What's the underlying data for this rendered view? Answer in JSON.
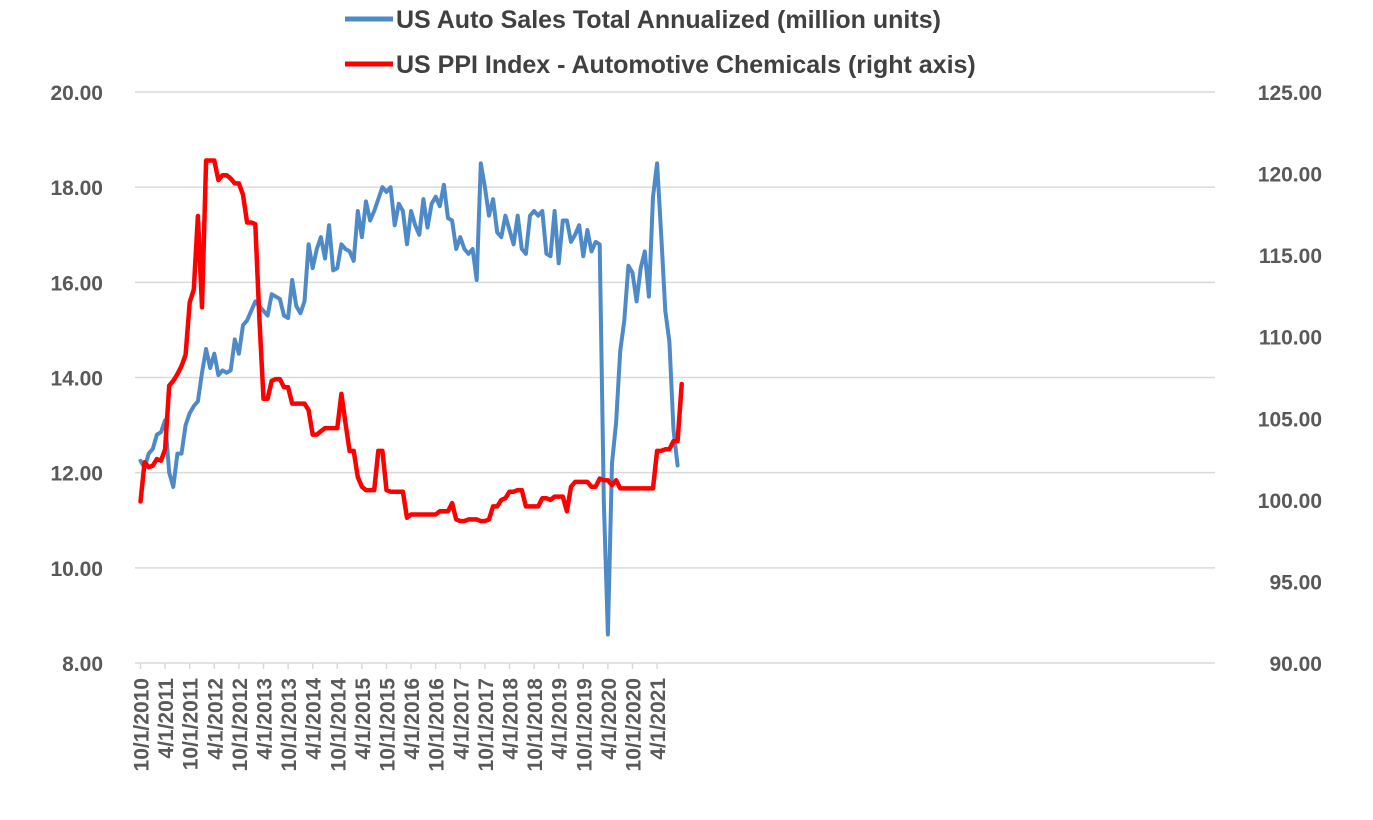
{
  "chart_data": {
    "type": "line",
    "title": "",
    "xlabel": "",
    "ylabel": "",
    "legend_position": "top-center",
    "grid": true,
    "x_tick_labels": [
      "10/1/2010",
      "4/1/2011",
      "10/1/2011",
      "4/1/2012",
      "10/1/2012",
      "4/1/2013",
      "10/1/2013",
      "4/1/2014",
      "10/1/2014",
      "4/1/2015",
      "10/1/2015",
      "4/1/2016",
      "10/1/2016",
      "4/1/2017",
      "10/1/2017",
      "4/1/2018",
      "10/1/2018",
      "4/1/2019",
      "10/1/2019",
      "4/1/2020",
      "10/1/2020",
      "4/1/2021"
    ],
    "x_start": "10/1/2010",
    "x_interval": "monthly",
    "y_left": {
      "range": [
        8,
        20
      ],
      "ticks": [
        "8.00",
        "10.00",
        "12.00",
        "14.00",
        "16.00",
        "18.00",
        "20.00"
      ]
    },
    "y_right": {
      "range": [
        90,
        125
      ],
      "ticks": [
        "90.00",
        "95.00",
        "100.00",
        "105.00",
        "110.00",
        "115.00",
        "120.00",
        "125.00"
      ]
    },
    "series": [
      {
        "name": "US Auto Sales Total Annualized (million units)",
        "axis": "left",
        "color": "#4e8ac8",
        "values": [
          12.25,
          12.1,
          12.4,
          12.5,
          12.8,
          12.85,
          13.1,
          12.0,
          11.7,
          12.4,
          12.4,
          13.0,
          13.25,
          13.4,
          13.5,
          14.1,
          14.6,
          14.2,
          14.5,
          14.05,
          14.15,
          14.1,
          14.15,
          14.8,
          14.5,
          15.1,
          15.2,
          15.4,
          15.6,
          15.5,
          15.4,
          15.3,
          15.75,
          15.7,
          15.65,
          15.3,
          15.25,
          16.05,
          15.5,
          15.35,
          15.6,
          16.8,
          16.3,
          16.7,
          16.95,
          16.5,
          17.2,
          16.25,
          16.3,
          16.8,
          16.7,
          16.65,
          16.45,
          17.5,
          16.95,
          17.7,
          17.3,
          17.5,
          17.75,
          18.0,
          17.9,
          18.0,
          17.2,
          17.65,
          17.5,
          16.8,
          17.5,
          17.2,
          17.0,
          17.75,
          17.15,
          17.65,
          17.8,
          17.6,
          18.05,
          17.35,
          17.3,
          16.7,
          16.95,
          16.7,
          16.6,
          16.7,
          16.05,
          18.5,
          18.0,
          17.4,
          17.75,
          17.05,
          16.95,
          17.4,
          17.1,
          16.8,
          17.4,
          16.7,
          16.6,
          17.4,
          17.5,
          17.4,
          17.5,
          16.6,
          16.55,
          17.5,
          16.4,
          17.3,
          17.3,
          16.85,
          17.0,
          17.2,
          16.55,
          17.1,
          16.65,
          16.85,
          16.8,
          11.4,
          8.6,
          12.2,
          13.05,
          14.55,
          15.2,
          16.35,
          16.2,
          15.6,
          16.3,
          16.65,
          15.7,
          17.8,
          18.5,
          17.0,
          15.4,
          14.75,
          12.9,
          12.15
        ]
      },
      {
        "name": "US PPI Index - Automotive Chemicals (right axis)",
        "axis": "right",
        "color": "#ff0000",
        "values": [
          99.9,
          102.3,
          102.0,
          102.1,
          102.5,
          102.4,
          103.1,
          107.0,
          107.3,
          107.7,
          108.2,
          108.9,
          112.1,
          112.9,
          117.4,
          111.8,
          120.8,
          120.8,
          120.8,
          119.6,
          119.9,
          119.9,
          119.7,
          119.4,
          119.4,
          118.7,
          117.0,
          117.0,
          116.9,
          111.1,
          106.2,
          106.2,
          107.3,
          107.4,
          107.4,
          106.9,
          106.9,
          105.9,
          105.9,
          105.9,
          105.9,
          105.5,
          104.0,
          104.0,
          104.2,
          104.4,
          104.4,
          104.4,
          104.4,
          106.5,
          104.7,
          103.0,
          103.0,
          101.4,
          100.8,
          100.6,
          100.6,
          100.6,
          103.0,
          103.0,
          100.6,
          100.5,
          100.5,
          100.5,
          100.5,
          98.9,
          99.1,
          99.1,
          99.1,
          99.1,
          99.1,
          99.1,
          99.1,
          99.3,
          99.3,
          99.3,
          99.8,
          98.8,
          98.7,
          98.7,
          98.8,
          98.8,
          98.8,
          98.7,
          98.7,
          98.8,
          99.6,
          99.6,
          100.0,
          100.1,
          100.5,
          100.5,
          100.6,
          100.6,
          99.6,
          99.6,
          99.6,
          99.6,
          100.1,
          100.1,
          100.0,
          100.2,
          100.2,
          100.2,
          99.3,
          100.8,
          101.1,
          101.1,
          101.1,
          101.1,
          100.8,
          100.8,
          101.3,
          101.2,
          101.2,
          100.9,
          101.2,
          100.7,
          100.7,
          100.7,
          100.7,
          100.7,
          100.7,
          100.7,
          100.7,
          100.7,
          103.0,
          103.0,
          103.1,
          103.1,
          103.6,
          103.6,
          107.1
        ]
      }
    ]
  }
}
